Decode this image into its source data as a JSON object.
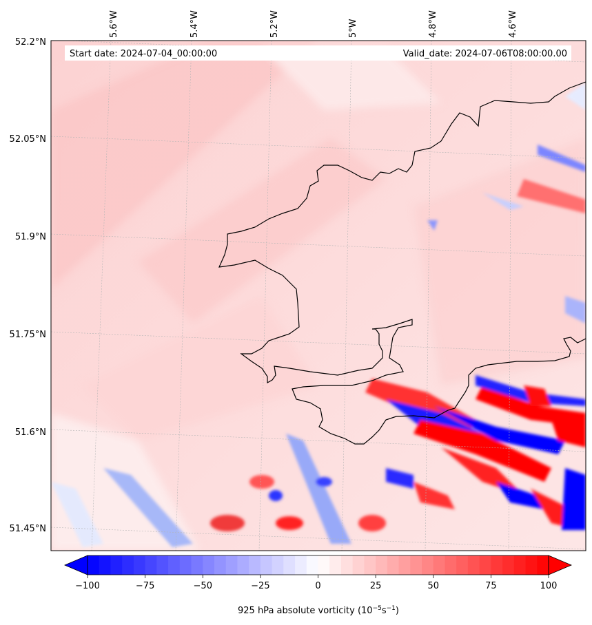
{
  "map": {
    "start_date_text": "Start date: 2024-07-04_00:00:00",
    "valid_date_text": "Valid_date: 2024-07-06T08:00:00.00",
    "lon_ticks": [
      "5.6°W",
      "5.4°W",
      "5.2°W",
      "5°W",
      "4.8°W",
      "4.6°W"
    ],
    "lat_ticks": [
      "52.2°N",
      "52.05°N",
      "51.9°N",
      "51.75°N",
      "51.6°N",
      "51.45°N"
    ],
    "coastline_color": "#000000",
    "gridlines": true,
    "field_colormap": "bwr"
  },
  "colorbar": {
    "ticks": [
      "−100",
      "−75",
      "−50",
      "−25",
      "0",
      "25",
      "50",
      "75",
      "100"
    ],
    "label_text": "925 hPa absolute vorticity (10",
    "label_sup1": "−5",
    "label_mid": "s",
    "label_sup2": "−1",
    "label_end": ")",
    "min": -100,
    "max": 100,
    "low_color": "#0000ff",
    "mid_color": "#ffffff",
    "high_color": "#ff0000"
  }
}
